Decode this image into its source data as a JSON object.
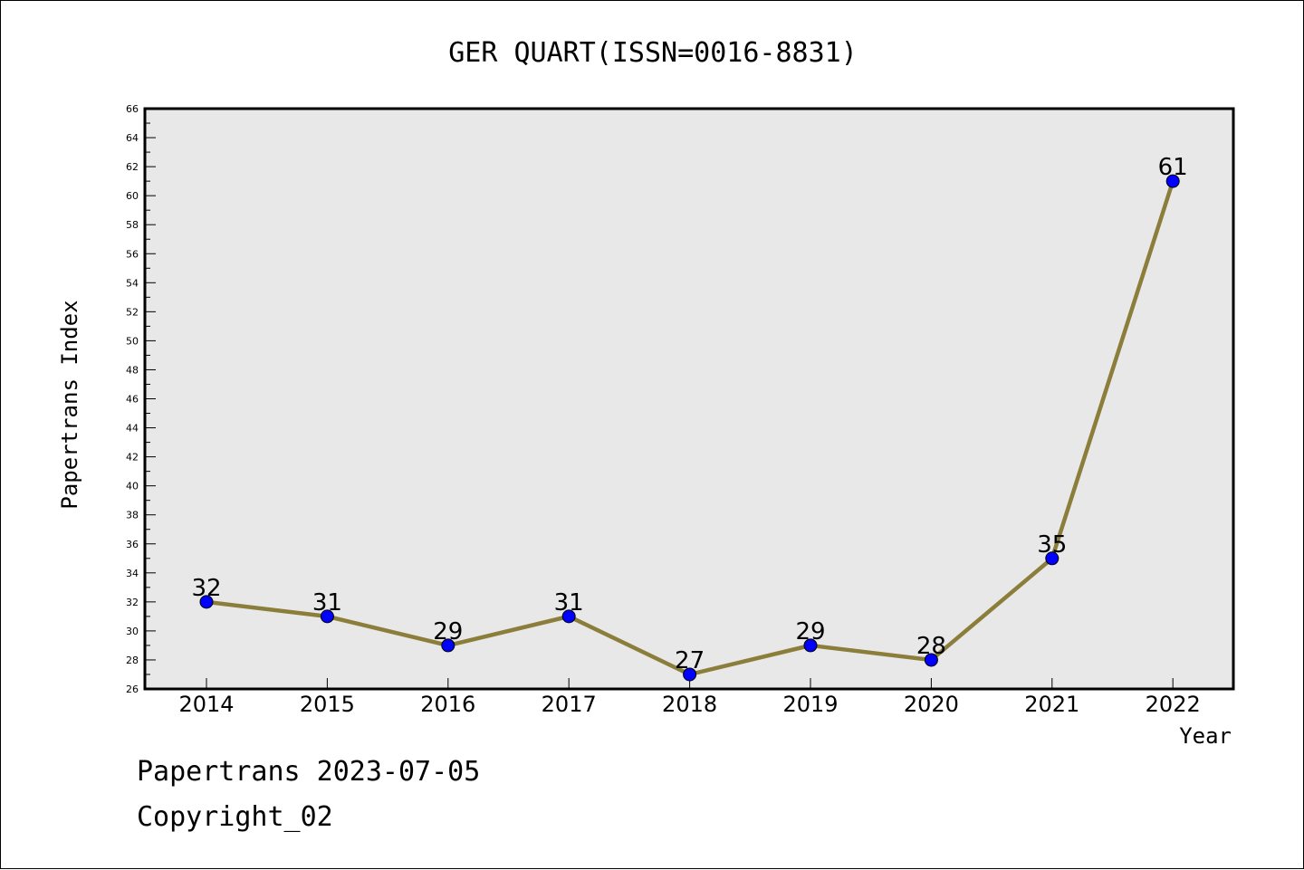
{
  "chart_data": {
    "type": "line",
    "title": "GER QUART(ISSN=0016-8831)",
    "xlabel": "Year",
    "ylabel": "Papertrans Index",
    "categories": [
      "2014",
      "2015",
      "2016",
      "2017",
      "2018",
      "2019",
      "2020",
      "2021",
      "2022"
    ],
    "values": [
      32,
      31,
      29,
      31,
      27,
      29,
      28,
      35,
      61
    ],
    "data_labels": [
      "32",
      "31",
      "29",
      "31",
      "27",
      "29",
      "28",
      "35",
      "61"
    ],
    "ylim": [
      26,
      66
    ],
    "y_ticks": [
      "26",
      "28",
      "30",
      "32",
      "34",
      "36",
      "38",
      "40",
      "42",
      "44",
      "46",
      "48",
      "50",
      "52",
      "54",
      "56",
      "58",
      "60",
      "62",
      "64",
      "66"
    ],
    "grid": false,
    "legend": "none",
    "colors": {
      "line": "#8B7D3A",
      "marker": "#0000FF",
      "plot_background": "#E8E8E8"
    }
  },
  "footer": {
    "line1": "Papertrans 2023-07-05",
    "line2": "Copyright_02"
  }
}
